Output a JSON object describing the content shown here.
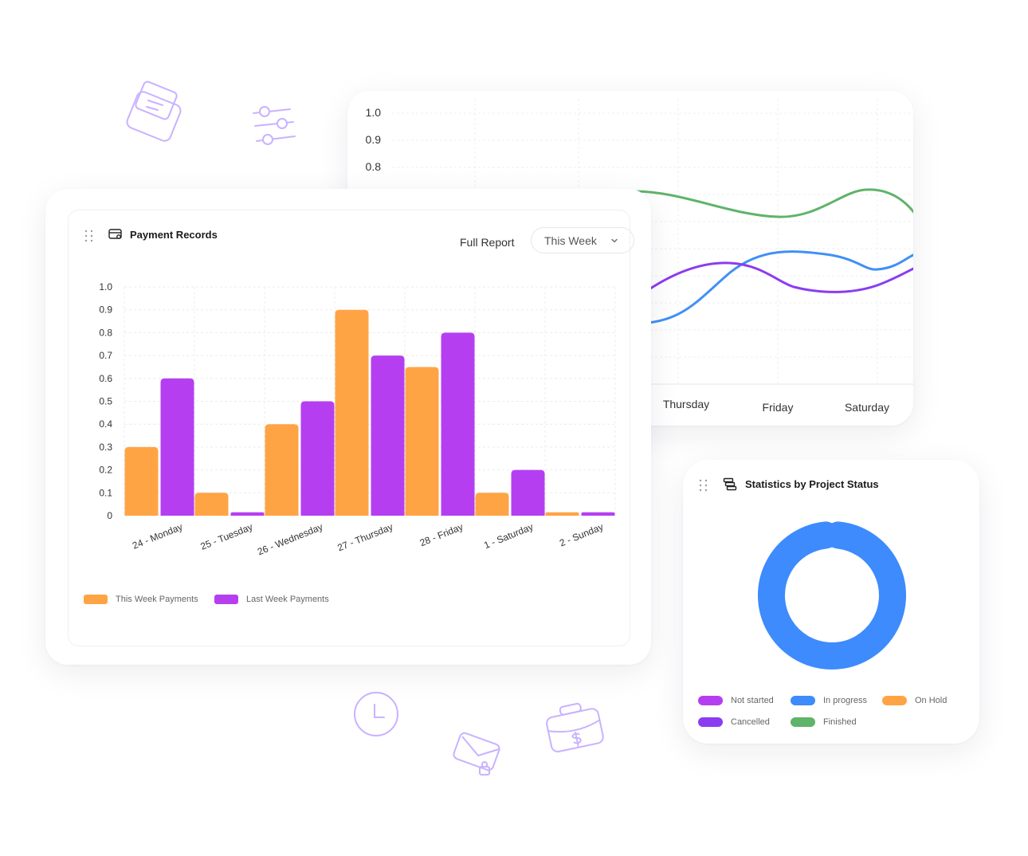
{
  "line_chart": {
    "type": "line",
    "y_ticks": [
      "1.0",
      "0.9",
      "0.8"
    ],
    "x_labels": [
      "Thursday",
      "Friday",
      "Saturday"
    ],
    "series": [
      {
        "color": "#5fb36a"
      },
      {
        "color": "#4090f5"
      },
      {
        "color": "#8b3cf0"
      }
    ]
  },
  "bar_card": {
    "title": "Payment Records",
    "full_report": "Full Report",
    "select_value": "This Week"
  },
  "chart_data": {
    "type": "bar",
    "categories": [
      "24 - Monday",
      "25 - Tuesday",
      "26 - Wednesday",
      "27 - Thursday",
      "28 - Friday",
      "1 - Saturday",
      "2 - Sunday"
    ],
    "series": [
      {
        "name": "This Week Payments",
        "color": "#ffa444",
        "values": [
          0.3,
          0.1,
          0.4,
          0.9,
          0.65,
          0.1,
          0.015
        ]
      },
      {
        "name": "Last Week Payments",
        "color": "#b53ff0",
        "values": [
          0.6,
          0.015,
          0.5,
          0.7,
          0.8,
          0.2,
          0.015
        ]
      }
    ],
    "y_ticks": [
      "1.0",
      "0.9",
      "0.8",
      "0.7",
      "0.6",
      "0.5",
      "0.4",
      "0.3",
      "0.2",
      "0.1",
      "0"
    ],
    "ylim": [
      0,
      1.0
    ],
    "grid": true,
    "legend_position": "bottom-left"
  },
  "donut_card": {
    "title": "Statistics by Project Status",
    "segments": [
      {
        "label": "In progress",
        "value": 100,
        "color": "#3d8bfd"
      }
    ],
    "legend": [
      {
        "label": "Not started",
        "color": "#b53ff0"
      },
      {
        "label": "In progress",
        "color": "#3d8bfd"
      },
      {
        "label": "On Hold",
        "color": "#ffa444"
      },
      {
        "label": "Cancelled",
        "color": "#8b3cf0"
      },
      {
        "label": "Finished",
        "color": "#5fb36a"
      }
    ]
  },
  "decorations": {
    "color": "#c9b2ff",
    "icons": [
      "envelope-icon",
      "sliders-icon",
      "clock-icon",
      "mail-lock-icon",
      "briefcase-dollar-icon"
    ]
  }
}
